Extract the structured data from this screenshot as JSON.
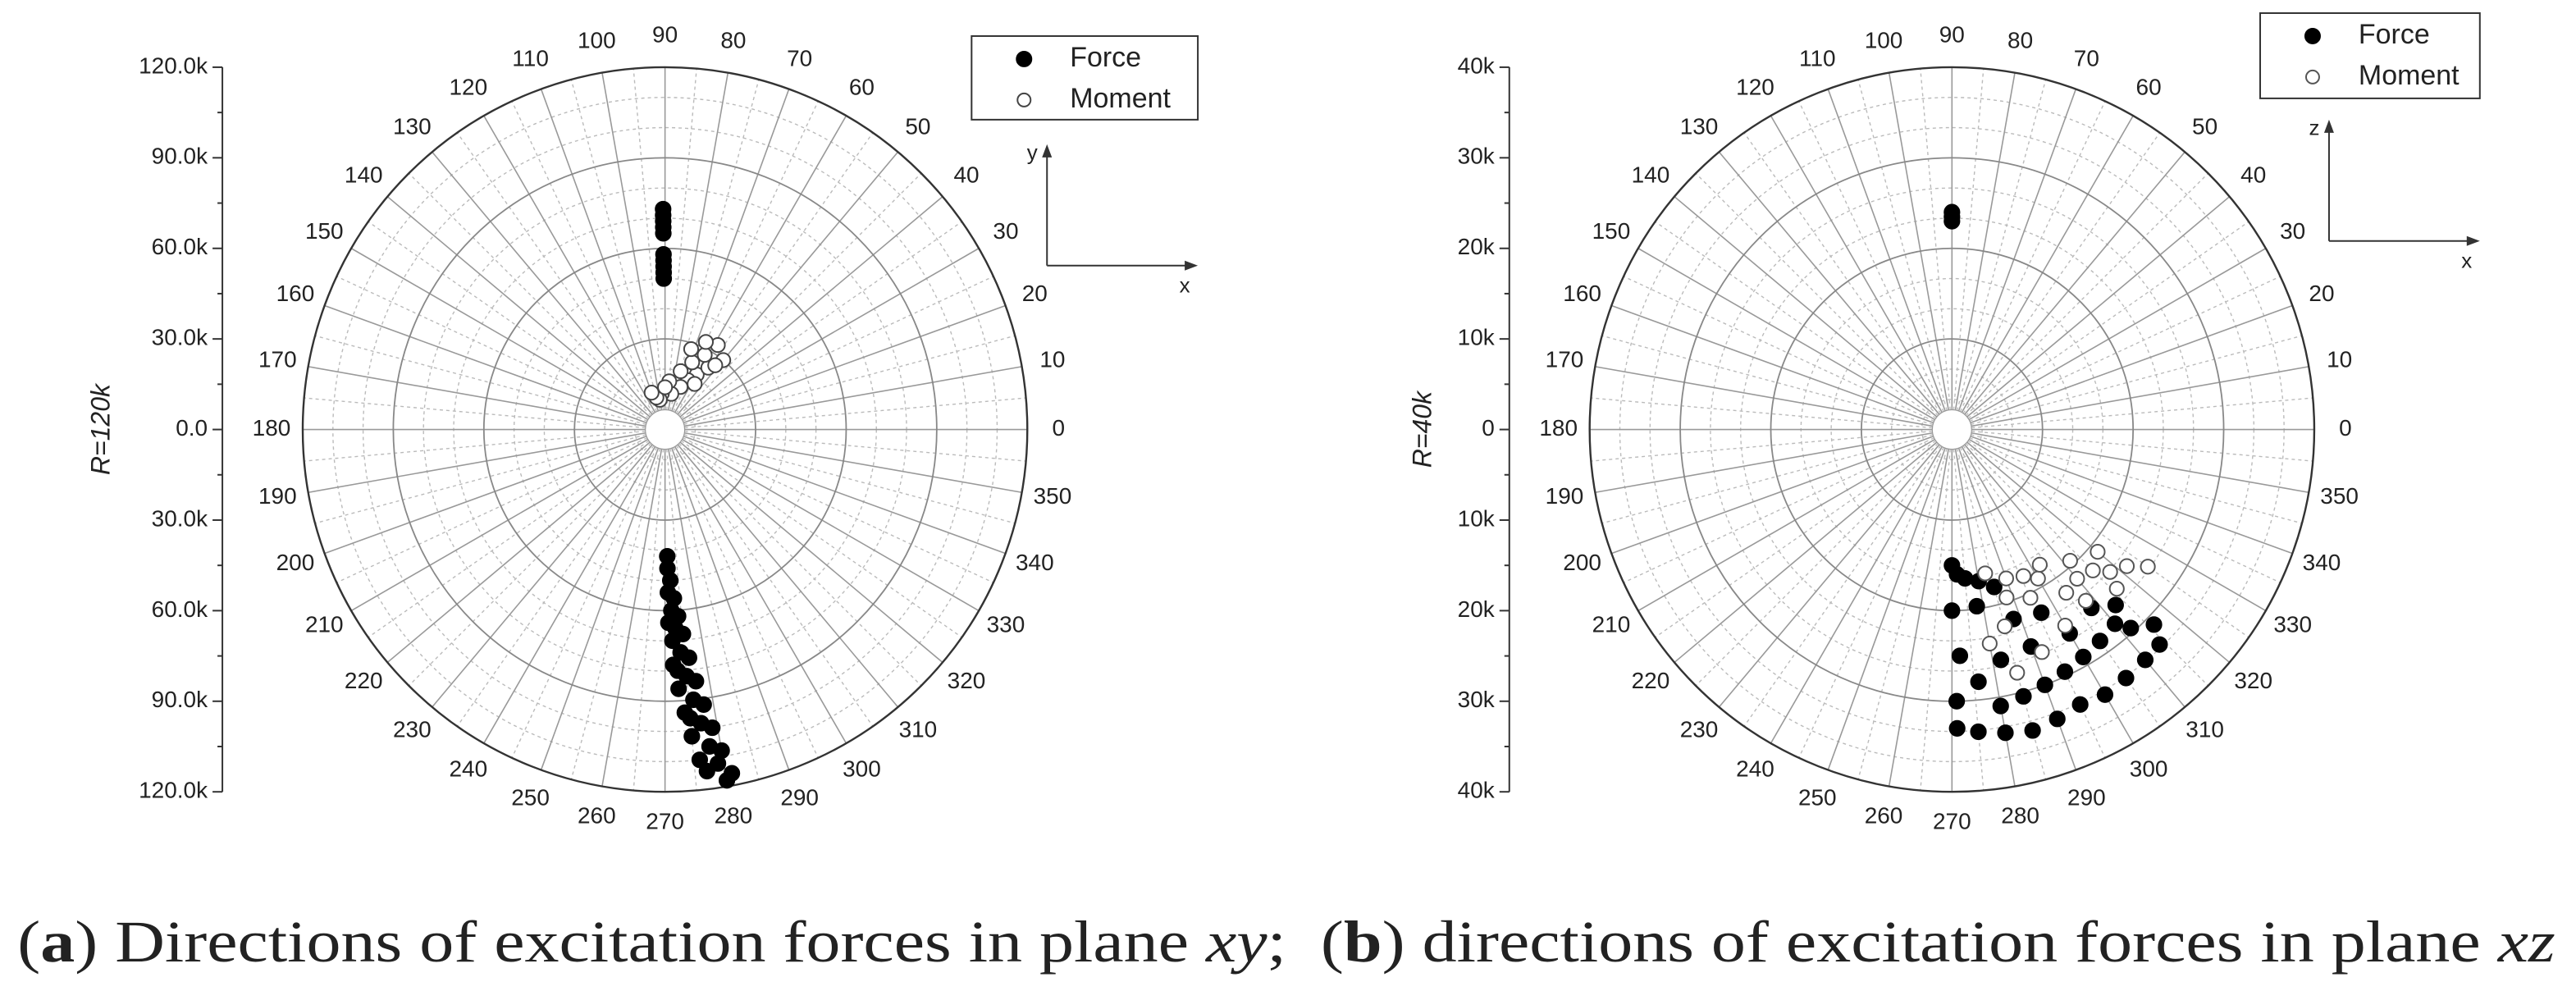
{
  "chart_data": [
    {
      "type": "polar-scatter",
      "axis_label": "R=120k",
      "rlim": [
        0,
        120000
      ],
      "rticks": [
        {
          "value": 0,
          "label": "0.0"
        },
        {
          "value": 30000,
          "label": "30.0k"
        },
        {
          "value": 60000,
          "label": "60.0k"
        },
        {
          "value": 90000,
          "label": "90.0k"
        },
        {
          "value": 120000,
          "label": "120.0k"
        }
      ],
      "thetaticks": [
        0,
        10,
        20,
        30,
        40,
        50,
        60,
        70,
        80,
        90,
        100,
        110,
        120,
        130,
        140,
        150,
        160,
        170,
        180,
        190,
        200,
        210,
        220,
        230,
        240,
        250,
        260,
        270,
        280,
        290,
        300,
        310,
        320,
        330,
        340,
        350
      ],
      "grid": true,
      "legend": "upper right",
      "inset_axes": {
        "vertical": "y",
        "horizontal": "x"
      },
      "series": [
        {
          "name": "Force",
          "marker": "filled",
          "color": "#000000",
          "theta": [
            90.5,
            90.5,
            90.5,
            90.5,
            90.5,
            90.5,
            90.5,
            90.5,
            90.5,
            90.5,
            271,
            271,
            272,
            271,
            273,
            272,
            274,
            271,
            273,
            275,
            272,
            274,
            276,
            272,
            275,
            277,
            273,
            276,
            278,
            274,
            277,
            279,
            275,
            278,
            280,
            276,
            279,
            281,
            280,
            277,
            273,
            275
          ],
          "r": [
            73000,
            71000,
            69000,
            67000,
            65000,
            58000,
            56000,
            54000,
            52000,
            50000,
            42000,
            46000,
            50000,
            54000,
            56000,
            60000,
            62000,
            64000,
            66000,
            68000,
            70000,
            74000,
            76000,
            78000,
            82000,
            84000,
            86000,
            90000,
            92000,
            94000,
            98000,
            100000,
            102000,
            106000,
            108000,
            110000,
            112000,
            116000,
            118000,
            114000,
            80000,
            96000
          ]
        },
        {
          "name": "Moment",
          "marker": "open",
          "color": "#444444",
          "theta": [
            60,
            55,
            50,
            65,
            70,
            80,
            95,
            100,
            75,
            62,
            58,
            52,
            68,
            85,
            105,
            72,
            65,
            90,
            110,
            57
          ],
          "r": [
            21000,
            25000,
            30000,
            18000,
            15000,
            12000,
            12000,
            10000,
            20000,
            28000,
            33000,
            27000,
            24000,
            16000,
            11000,
            28000,
            32000,
            14000,
            13000,
            18000
          ]
        }
      ]
    },
    {
      "type": "polar-scatter",
      "axis_label": "R=40k",
      "rlim": [
        0,
        40000
      ],
      "rticks": [
        0,
        {
          "value": 10000,
          "label": "10k"
        },
        {
          "value": 20000,
          "label": "20k"
        },
        {
          "value": 30000,
          "label": "30k"
        },
        {
          "value": 40000,
          "label": "40k"
        }
      ],
      "thetaticks": [
        0,
        10,
        20,
        30,
        40,
        50,
        60,
        70,
        80,
        90,
        100,
        110,
        120,
        130,
        140,
        150,
        160,
        170,
        180,
        190,
        200,
        210,
        220,
        230,
        240,
        250,
        260,
        270,
        280,
        290,
        300,
        310,
        320,
        330,
        340,
        350
      ],
      "grid": true,
      "legend": "upper right",
      "inset_axes": {
        "vertical": "z",
        "horizontal": "x"
      },
      "series": [
        {
          "name": "Force",
          "marker": "filled",
          "color": "#000000",
          "theta": [
            90,
            90,
            90,
            270,
            272,
            275,
            280,
            285,
            270,
            272,
            271,
            271,
            275,
            280,
            285,
            290,
            295,
            300,
            305,
            310,
            314,
            316,
            312,
            310,
            305,
            300,
            295,
            290,
            285,
            280,
            276,
            282,
            290,
            300,
            308,
            313,
            278,
            288,
            296
          ],
          "r": [
            23500,
            24000,
            23000,
            15000,
            16000,
            16500,
            17000,
            18000,
            20000,
            25000,
            30000,
            33000,
            33500,
            34000,
            34400,
            34000,
            33500,
            33800,
            33500,
            33200,
            33000,
            31000,
            29500,
            28000,
            28500,
            29000,
            29500,
            30000,
            30500,
            31000,
            28000,
            26000,
            25500,
            26000,
            25000,
            26500,
            19700,
            22000,
            22500
          ]
        },
        {
          "name": "Moment",
          "marker": "open",
          "color": "#555555",
          "theta": [
            283,
            290,
            300,
            310,
            318,
            325,
            322,
            316,
            305,
            295,
            288,
            285,
            292,
            300,
            308,
            315,
            320,
            296,
            303,
            312,
            280,
            285
          ],
          "r": [
            16300,
            17500,
            19000,
            21500,
            23500,
            26400,
            24500,
            25300,
            22000,
            20500,
            19500,
            27800,
            26500,
            25000,
            24000,
            22000,
            21000,
            18000,
            17800,
            19500,
            24000,
            22500
          ]
        }
      ]
    }
  ],
  "caption": [
    {
      "text": "(",
      "style": "normal"
    },
    {
      "text": "a",
      "style": "bold"
    },
    {
      "text": ") Directions of excitation forces in plane ",
      "style": "normal"
    },
    {
      "text": "xy",
      "style": "italic"
    },
    {
      "text": ";  (",
      "style": "normal"
    },
    {
      "text": "b",
      "style": "bold"
    },
    {
      "text": ") directions of excitation forces in plane ",
      "style": "normal"
    },
    {
      "text": "xz",
      "style": "italic"
    }
  ]
}
